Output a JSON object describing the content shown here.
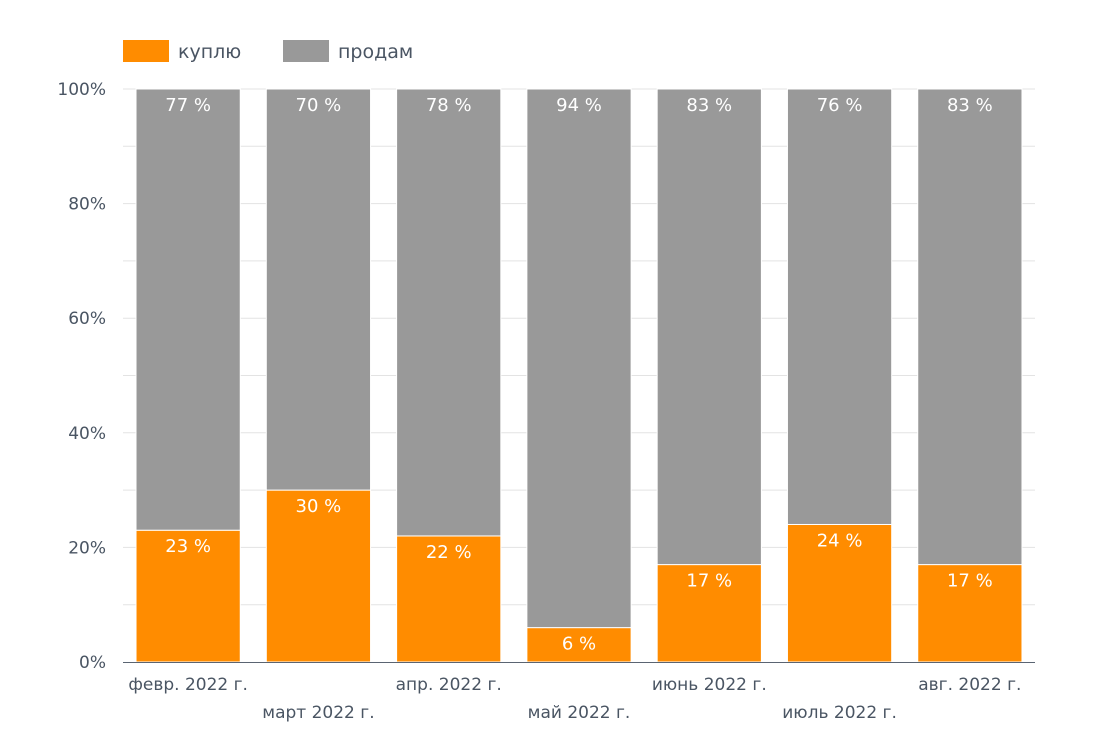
{
  "chart_data": {
    "type": "bar",
    "stacked": true,
    "categories": [
      "февр. 2022 г.",
      "март 2022 г.",
      "апр. 2022 г.",
      "май 2022 г.",
      "июнь 2022 г.",
      "июль 2022 г.",
      "авг. 2022 г."
    ],
    "series": [
      {
        "name": "куплю",
        "color": "#ff8c00",
        "values": [
          23,
          30,
          22,
          6,
          17,
          24,
          17
        ],
        "labels": [
          "23 %",
          "30 %",
          "22 %",
          "6 %",
          "17 %",
          "24 %",
          "17 %"
        ]
      },
      {
        "name": "продам",
        "color": "#999999",
        "values": [
          77,
          70,
          78,
          94,
          83,
          76,
          83
        ],
        "labels": [
          "77 %",
          "70 %",
          "78 %",
          "94 %",
          "83 %",
          "76 %",
          "83 %"
        ]
      }
    ],
    "ylim": [
      0,
      100
    ],
    "yticks": [
      0,
      20,
      40,
      60,
      80,
      100
    ],
    "ytick_labels": [
      "0%",
      "20%",
      "40%",
      "60%",
      "80%",
      "100%"
    ],
    "grid": true,
    "legend": "top-left"
  }
}
